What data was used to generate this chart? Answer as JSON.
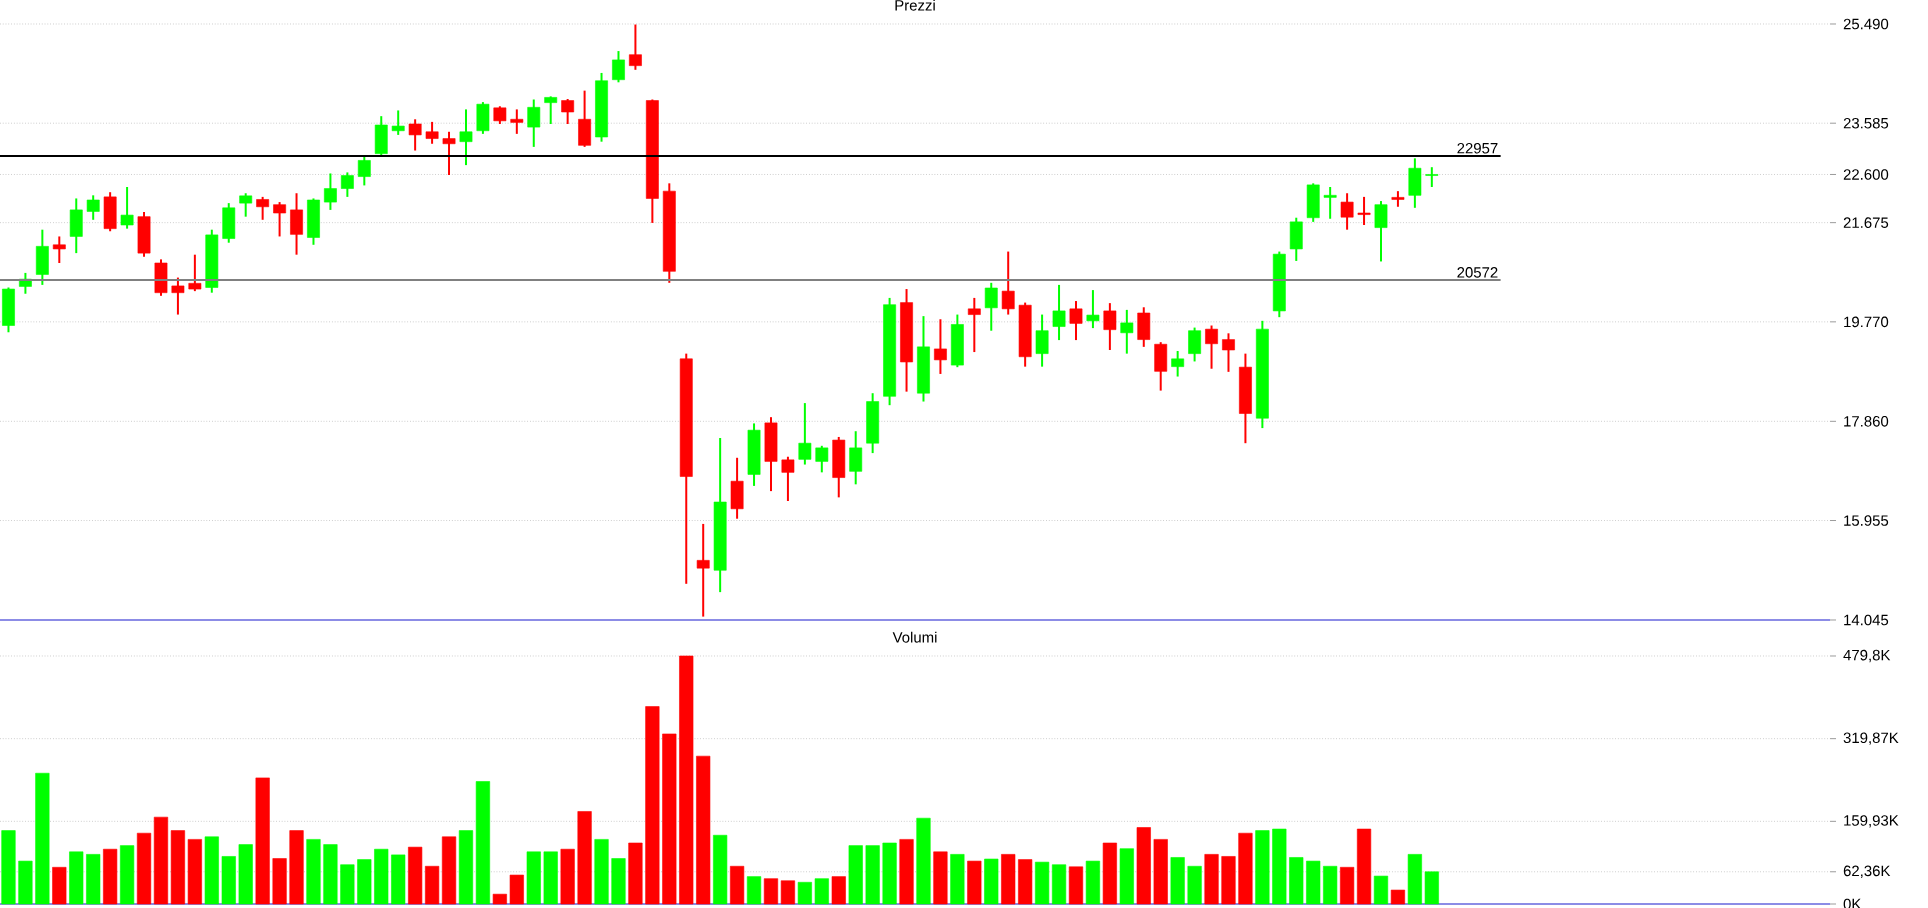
{
  "chart_data": [
    {
      "type": "candlestick",
      "title": "Prezzi",
      "tick_labels": "y",
      "grid": "y",
      "categories": [
        null,
        null,
        null,
        null,
        null,
        null,
        null,
        null,
        null,
        null,
        null,
        null,
        null,
        null,
        null,
        null,
        null,
        null,
        null,
        null,
        null,
        null,
        null,
        null,
        null,
        null,
        null,
        null,
        null,
        null,
        null,
        null,
        null,
        null,
        null,
        null,
        null,
        null,
        null,
        null,
        null,
        null,
        null,
        null,
        null,
        null,
        null,
        null,
        null,
        null,
        null,
        null,
        null,
        null,
        null,
        null,
        null,
        null,
        null,
        null,
        null,
        null,
        null,
        null,
        null,
        null,
        null,
        null,
        null,
        null,
        null,
        null,
        null,
        null,
        null,
        null,
        null,
        null,
        null,
        null,
        null,
        null,
        null,
        null,
        null,
        null,
        null,
        null,
        null,
        null,
        null,
        null,
        null,
        null,
        null,
        null,
        null,
        null,
        null,
        null,
        null,
        null,
        null,
        null,
        null,
        null,
        null,
        null
      ],
      "ohlc": [
        [
          19700,
          20430,
          19570,
          20400
        ],
        [
          20450,
          20710,
          20310,
          20590
        ],
        [
          20680,
          21540,
          20480,
          21220
        ],
        [
          21250,
          21410,
          20900,
          21170
        ],
        [
          21410,
          22140,
          21090,
          21920
        ],
        [
          21890,
          22200,
          21730,
          22110
        ],
        [
          22170,
          22260,
          21510,
          21560
        ],
        [
          21630,
          22360,
          21560,
          21820
        ],
        [
          21790,
          21880,
          21020,
          21090
        ],
        [
          20900,
          20970,
          20270,
          20330
        ],
        [
          20460,
          20620,
          19910,
          20330
        ],
        [
          20510,
          21060,
          20360,
          20400
        ],
        [
          20430,
          21540,
          20330,
          21440
        ],
        [
          21370,
          22050,
          21290,
          21960
        ],
        [
          22050,
          22240,
          21790,
          22190
        ],
        [
          22120,
          22170,
          21730,
          21980
        ],
        [
          22020,
          22070,
          21410,
          21860
        ],
        [
          21920,
          22240,
          21060,
          21450
        ],
        [
          21390,
          22140,
          21250,
          22110
        ],
        [
          22070,
          22620,
          21920,
          22330
        ],
        [
          22330,
          22640,
          22170,
          22580
        ],
        [
          22560,
          22970,
          22390,
          22870
        ],
        [
          23000,
          23720,
          22940,
          23550
        ],
        [
          23440,
          23830,
          23360,
          23530
        ],
        [
          23570,
          23660,
          23060,
          23360
        ],
        [
          23420,
          23610,
          23190,
          23290
        ],
        [
          23290,
          23420,
          22590,
          23190
        ],
        [
          23230,
          23850,
          22780,
          23420
        ],
        [
          23440,
          23990,
          23380,
          23950
        ],
        [
          23880,
          23910,
          23570,
          23630
        ],
        [
          23660,
          23850,
          23380,
          23600
        ],
        [
          23510,
          24040,
          23130,
          23890
        ],
        [
          23980,
          24100,
          23570,
          24080
        ],
        [
          24020,
          24050,
          23570,
          23800
        ],
        [
          23660,
          24210,
          23130,
          23160
        ],
        [
          23320,
          24550,
          23230,
          24400
        ],
        [
          24420,
          24970,
          24370,
          24800
        ],
        [
          24900,
          25480,
          24610,
          24690
        ],
        [
          24020,
          24040,
          21670,
          22140
        ],
        [
          22280,
          22430,
          20520,
          20740
        ],
        [
          19060,
          19160,
          14740,
          16800
        ],
        [
          15190,
          15890,
          14110,
          15040
        ],
        [
          15000,
          17540,
          14580,
          16310
        ],
        [
          16710,
          17160,
          15990,
          16180
        ],
        [
          16840,
          17820,
          16620,
          17690
        ],
        [
          17830,
          17940,
          16520,
          17090
        ],
        [
          17120,
          17180,
          16330,
          16880
        ],
        [
          17130,
          18210,
          17030,
          17440
        ],
        [
          17090,
          17390,
          16880,
          17350
        ],
        [
          17500,
          17560,
          16400,
          16780
        ],
        [
          16900,
          17670,
          16650,
          17350
        ],
        [
          17440,
          18400,
          17250,
          18240
        ],
        [
          18340,
          20230,
          18170,
          20100
        ],
        [
          20140,
          20400,
          18430,
          19000
        ],
        [
          18400,
          19880,
          18240,
          19290
        ],
        [
          19250,
          19820,
          18770,
          19040
        ],
        [
          18940,
          19910,
          18900,
          19720
        ],
        [
          20020,
          20230,
          19190,
          19910
        ],
        [
          20040,
          20520,
          19600,
          20420
        ],
        [
          20360,
          21120,
          19910,
          20020
        ],
        [
          20090,
          20140,
          18910,
          19100
        ],
        [
          19160,
          19910,
          18910,
          19600
        ],
        [
          19680,
          20480,
          19420,
          19980
        ],
        [
          20020,
          20170,
          19420,
          19740
        ],
        [
          19790,
          20380,
          19650,
          19900
        ],
        [
          19980,
          20130,
          19230,
          19620
        ],
        [
          19560,
          20000,
          19160,
          19750
        ],
        [
          19940,
          20050,
          19290,
          19430
        ],
        [
          19340,
          19380,
          18450,
          18820
        ],
        [
          18910,
          19210,
          18720,
          19060
        ],
        [
          19160,
          19660,
          19010,
          19600
        ],
        [
          19630,
          19700,
          18870,
          19350
        ],
        [
          19430,
          19550,
          18810,
          19230
        ],
        [
          18900,
          19160,
          17440,
          18010
        ],
        [
          17920,
          19790,
          17730,
          19630
        ],
        [
          19980,
          21120,
          19860,
          21070
        ],
        [
          21170,
          21770,
          20940,
          21690
        ],
        [
          21770,
          22430,
          21690,
          22400
        ],
        [
          22160,
          22360,
          21750,
          22200
        ],
        [
          22070,
          22240,
          21540,
          21780
        ],
        [
          21860,
          22170,
          21630,
          21830
        ],
        [
          21580,
          22090,
          20930,
          22020
        ],
        [
          22160,
          22280,
          21980,
          22120
        ],
        [
          22200,
          22910,
          21960,
          22720
        ],
        [
          22580,
          22740,
          22360,
          22600
        ],
        null,
        null,
        null,
        null,
        null,
        null,
        null,
        null,
        null,
        null,
        null,
        null,
        null,
        null,
        null,
        null,
        null,
        null,
        null,
        null,
        null,
        null,
        null
      ],
      "colors": [
        "#00ff00",
        "#00ff00",
        "#00ff00",
        "#ff0000",
        "#00ff00",
        "#00ff00",
        "#ff0000",
        "#00ff00",
        "#ff0000",
        "#ff0000",
        "#ff0000",
        "#ff0000",
        "#00ff00",
        "#00ff00",
        "#00ff00",
        "#ff0000",
        "#ff0000",
        "#ff0000",
        "#00ff00",
        "#00ff00",
        "#00ff00",
        "#00ff00",
        "#00ff00",
        "#00ff00",
        "#ff0000",
        "#ff0000",
        "#ff0000",
        "#00ff00",
        "#00ff00",
        "#ff0000",
        "#ff0000",
        "#00ff00",
        "#00ff00",
        "#ff0000",
        "#ff0000",
        "#00ff00",
        "#00ff00",
        "#ff0000",
        "#ff0000",
        "#ff0000",
        "#ff0000",
        "#ff0000",
        "#00ff00",
        "#ff0000",
        "#00ff00",
        "#ff0000",
        "#ff0000",
        "#00ff00",
        "#00ff00",
        "#ff0000",
        "#00ff00",
        "#00ff00",
        "#00ff00",
        "#ff0000",
        "#00ff00",
        "#ff0000",
        "#00ff00",
        "#ff0000",
        "#00ff00",
        "#ff0000",
        "#ff0000",
        "#00ff00",
        "#00ff00",
        "#ff0000",
        "#00ff00",
        "#ff0000",
        "#00ff00",
        "#ff0000",
        "#ff0000",
        "#00ff00",
        "#00ff00",
        "#ff0000",
        "#ff0000",
        "#ff0000",
        "#00ff00",
        "#00ff00",
        "#00ff00",
        "#00ff00",
        "#00ff00",
        "#ff0000",
        "#ff0000",
        "#00ff00",
        "#ff0000",
        "#00ff00",
        "#00ff00",
        null,
        null,
        null,
        null,
        null,
        null,
        null,
        null,
        null,
        null,
        null,
        null,
        null,
        null,
        null,
        null,
        null,
        null,
        null,
        null,
        null,
        null,
        null
      ],
      "ylim": [
        14045,
        25490
      ],
      "yticks": [
        {
          "value": 25490,
          "label": "25.490"
        },
        {
          "value": 23585,
          "label": "23.585"
        },
        {
          "value": 22600,
          "label": "22.600"
        },
        {
          "value": 21675,
          "label": "21.675"
        },
        {
          "value": 19770,
          "label": "19.770"
        },
        {
          "value": 17860,
          "label": "17.860"
        },
        {
          "value": 15955,
          "label": "15.955"
        },
        {
          "value": 14045,
          "label": "14.045"
        }
      ],
      "ref_lines": [
        {
          "axis": "y",
          "value": 22957,
          "label": "22957",
          "color": "#000000"
        },
        {
          "axis": "y",
          "value": 20572,
          "label": "20572",
          "color": "#808080"
        }
      ]
    },
    {
      "type": "bar",
      "title": "Volumi",
      "tick_labels": "y",
      "grid": "y",
      "categories": [
        null,
        null,
        null,
        null,
        null,
        null,
        null,
        null,
        null,
        null,
        null,
        null,
        null,
        null,
        null,
        null,
        null,
        null,
        null,
        null,
        null,
        null,
        null,
        null,
        null,
        null,
        null,
        null,
        null,
        null,
        null,
        null,
        null,
        null,
        null,
        null,
        null,
        null,
        null,
        null,
        null,
        null,
        null,
        null,
        null,
        null,
        null,
        null,
        null,
        null,
        null,
        null,
        null,
        null,
        null,
        null,
        null,
        null,
        null,
        null,
        null,
        null,
        null,
        null,
        null,
        null,
        null,
        null,
        null,
        null,
        null,
        null,
        null,
        null,
        null,
        null,
        null,
        null,
        null,
        null,
        null,
        null,
        null,
        null,
        null,
        null,
        null,
        null,
        null,
        null,
        null,
        null,
        null,
        null,
        null,
        null,
        null,
        null,
        null,
        null,
        null,
        null,
        null,
        null,
        null,
        null,
        null,
        null
      ],
      "values": [
        142,
        83,
        253,
        71,
        101,
        96,
        106,
        113,
        137,
        168,
        142,
        125,
        130,
        92,
        115,
        244,
        88,
        142,
        125,
        115,
        76,
        86,
        106,
        95,
        110,
        73,
        130,
        142,
        237,
        19,
        56,
        101,
        101,
        106,
        179,
        125,
        88,
        118,
        382,
        329,
        479.8,
        286,
        133,
        73,
        53,
        49,
        45,
        42,
        49,
        53,
        113,
        113,
        118,
        125,
        166,
        101,
        96,
        83,
        87,
        96,
        86,
        81,
        76,
        72,
        83,
        118,
        107,
        148,
        125,
        90,
        73,
        96,
        92,
        137,
        142,
        145,
        90,
        83,
        73,
        71,
        145,
        54,
        27,
        96,
        62.36,
        null,
        null,
        null,
        null,
        null,
        null,
        null,
        null,
        null,
        null,
        null,
        null,
        null,
        null,
        null,
        null,
        null,
        null,
        null,
        null,
        null,
        null,
        null
      ],
      "colors": [
        "#00ff00",
        "#00ff00",
        "#00ff00",
        "#ff0000",
        "#00ff00",
        "#00ff00",
        "#ff0000",
        "#00ff00",
        "#ff0000",
        "#ff0000",
        "#ff0000",
        "#ff0000",
        "#00ff00",
        "#00ff00",
        "#00ff00",
        "#ff0000",
        "#ff0000",
        "#ff0000",
        "#00ff00",
        "#00ff00",
        "#00ff00",
        "#00ff00",
        "#00ff00",
        "#00ff00",
        "#ff0000",
        "#ff0000",
        "#ff0000",
        "#00ff00",
        "#00ff00",
        "#ff0000",
        "#ff0000",
        "#00ff00",
        "#00ff00",
        "#ff0000",
        "#ff0000",
        "#00ff00",
        "#00ff00",
        "#ff0000",
        "#ff0000",
        "#ff0000",
        "#ff0000",
        "#ff0000",
        "#00ff00",
        "#ff0000",
        "#00ff00",
        "#ff0000",
        "#ff0000",
        "#00ff00",
        "#00ff00",
        "#ff0000",
        "#00ff00",
        "#00ff00",
        "#00ff00",
        "#ff0000",
        "#00ff00",
        "#ff0000",
        "#00ff00",
        "#ff0000",
        "#00ff00",
        "#ff0000",
        "#ff0000",
        "#00ff00",
        "#00ff00",
        "#ff0000",
        "#00ff00",
        "#ff0000",
        "#00ff00",
        "#ff0000",
        "#ff0000",
        "#00ff00",
        "#00ff00",
        "#ff0000",
        "#ff0000",
        "#ff0000",
        "#00ff00",
        "#00ff00",
        "#00ff00",
        "#00ff00",
        "#00ff00",
        "#ff0000",
        "#ff0000",
        "#00ff00",
        "#ff0000",
        "#00ff00",
        "#00ff00",
        null,
        null,
        null,
        null,
        null,
        null,
        null,
        null,
        null,
        null,
        null,
        null,
        null,
        null,
        null,
        null,
        null,
        null,
        null,
        null,
        null,
        null,
        null
      ],
      "ylim": [
        0,
        479.8
      ],
      "yticks": [
        {
          "value": 479.8,
          "label": "479,8K"
        },
        {
          "value": 319.87,
          "label": "319,87K"
        },
        {
          "value": 159.93,
          "label": "159,93K"
        },
        {
          "value": 62.36,
          "label": "62,36K"
        },
        {
          "value": 0,
          "label": "0K"
        }
      ]
    }
  ]
}
